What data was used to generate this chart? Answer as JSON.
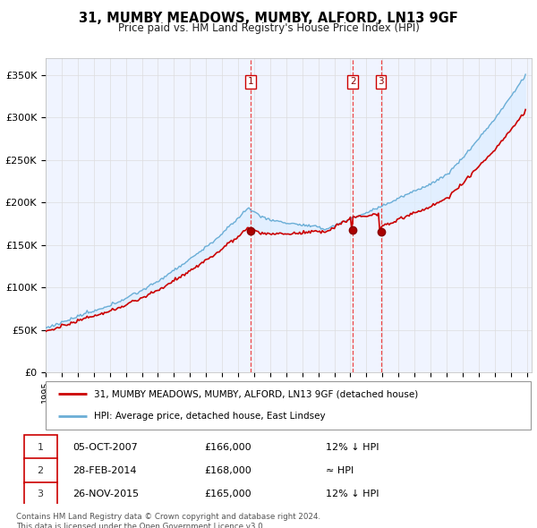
{
  "title": "31, MUMBY MEADOWS, MUMBY, ALFORD, LN13 9GF",
  "subtitle": "Price paid vs. HM Land Registry's House Price Index (HPI)",
  "ylabel_ticks": [
    "£0",
    "£50K",
    "£100K",
    "£150K",
    "£200K",
    "£250K",
    "£300K",
    "£350K"
  ],
  "ytick_values": [
    0,
    50000,
    100000,
    150000,
    200000,
    250000,
    300000,
    350000
  ],
  "ylim": [
    0,
    370000
  ],
  "xlim_start": 1995.0,
  "xlim_end": 2025.3,
  "hpi_color": "#6baed6",
  "property_color": "#cc0000",
  "fill_color": "#ddeeff",
  "vline_color": "#ee3333",
  "transactions": [
    {
      "num": 1,
      "date": "05-OCT-2007",
      "price": 166000,
      "hpi_rel": "12% ↓ HPI",
      "x_year": 2007.76
    },
    {
      "num": 2,
      "date": "28-FEB-2014",
      "price": 168000,
      "hpi_rel": "≈ HPI",
      "x_year": 2014.16
    },
    {
      "num": 3,
      "date": "26-NOV-2015",
      "price": 165000,
      "hpi_rel": "12% ↓ HPI",
      "x_year": 2015.9
    }
  ],
  "legend_property": "31, MUMBY MEADOWS, MUMBY, ALFORD, LN13 9GF (detached house)",
  "legend_hpi": "HPI: Average price, detached house, East Lindsey",
  "footnote": "Contains HM Land Registry data © Crown copyright and database right 2024.\nThis data is licensed under the Open Government Licence v3.0.",
  "background_color": "#ffffff",
  "grid_color": "#dddddd",
  "chart_bg": "#f0f4ff"
}
